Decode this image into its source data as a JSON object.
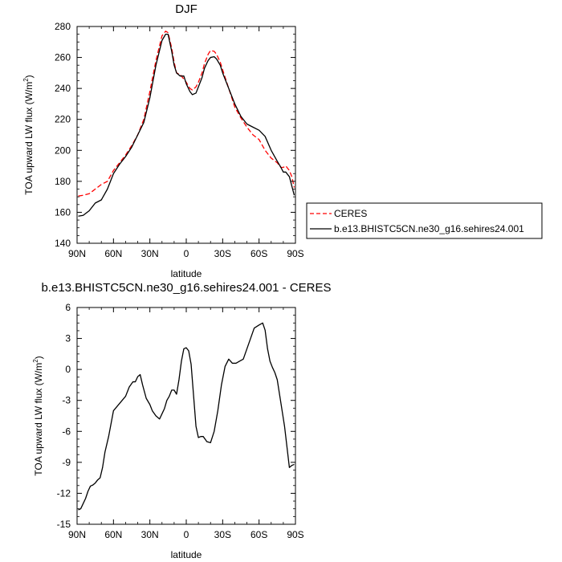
{
  "chart_data": [
    {
      "type": "line",
      "title": "DJF",
      "xlabel": "latitude",
      "ylabel": "TOA upward LW flux (W/m",
      "ylabel_sup": "2",
      "ylabel_tail": ")",
      "ylim": [
        140,
        280
      ],
      "xlim": [
        -90,
        90
      ],
      "y_ticks": [
        140,
        160,
        180,
        200,
        220,
        240,
        260,
        280
      ],
      "x_ticks": [
        -90,
        -60,
        -30,
        0,
        30,
        60,
        90
      ],
      "x_tick_labels": [
        "90N",
        "60N",
        "30N",
        "0",
        "30S",
        "60S",
        "90S"
      ],
      "legend": {
        "placement": "right",
        "entries": [
          "CERES",
          "b.e13.BHISTC5CN.ne30_g16.sehires24.001"
        ]
      },
      "series": [
        {
          "name": "CERES",
          "color": "#ff0000",
          "dashed": true,
          "x": [
            -89,
            -85,
            -80,
            -75,
            -70,
            -65,
            -60,
            -55,
            -50,
            -45,
            -40,
            -35,
            -30,
            -25,
            -20,
            -17,
            -15,
            -12,
            -10,
            -8,
            -5,
            -2,
            0,
            3,
            5,
            8,
            10,
            13,
            15,
            18,
            20,
            23,
            25,
            28,
            30,
            35,
            40,
            45,
            50,
            55,
            60,
            65,
            70,
            75,
            78,
            80,
            82,
            85,
            87,
            89
          ],
          "y": [
            170.5,
            171,
            172,
            175,
            178,
            180,
            187,
            192,
            197,
            203,
            210,
            220,
            238,
            258,
            274,
            277,
            276,
            266,
            257,
            250,
            249,
            246,
            244,
            240,
            239,
            241,
            244,
            250,
            256,
            262,
            264.5,
            264,
            262,
            257,
            252,
            240,
            228,
            221,
            215,
            210,
            207,
            200,
            195,
            192,
            189,
            189,
            190,
            187,
            183,
            176
          ]
        },
        {
          "name": "b.e13.BHISTC5CN.ne30_g16.sehires24.001",
          "color": "#000000",
          "dashed": false,
          "x": [
            -89,
            -85,
            -80,
            -75,
            -70,
            -65,
            -60,
            -55,
            -50,
            -45,
            -40,
            -35,
            -30,
            -25,
            -20,
            -17,
            -15,
            -12,
            -10,
            -8,
            -5,
            -2,
            0,
            3,
            5,
            8,
            10,
            13,
            15,
            18,
            20,
            23,
            25,
            28,
            30,
            35,
            40,
            45,
            50,
            55,
            60,
            65,
            70,
            75,
            78,
            80,
            82,
            85,
            87,
            89
          ],
          "y": [
            157.5,
            158,
            161,
            166,
            168,
            175,
            185,
            191,
            196,
            202,
            210,
            218,
            234,
            255,
            271,
            275,
            275,
            264,
            255,
            250,
            248,
            248,
            243,
            238,
            236,
            237,
            241,
            247,
            253,
            258,
            260,
            260.5,
            259,
            255,
            250,
            240,
            230,
            222,
            217,
            215,
            213,
            209,
            200,
            193,
            189,
            186,
            186,
            183,
            177,
            171
          ]
        }
      ]
    },
    {
      "type": "line",
      "title": "b.e13.BHISTC5CN.ne30_g16.sehires24.001 - CERES",
      "xlabel": "latitude",
      "ylabel": "TOA upward LW flux (W/m",
      "ylabel_sup": "2",
      "ylabel_tail": ")",
      "ylim": [
        -15,
        6
      ],
      "xlim": [
        -90,
        90
      ],
      "y_ticks": [
        -15,
        -12,
        -9,
        -6,
        -3,
        0,
        3,
        6
      ],
      "x_ticks": [
        -90,
        -60,
        -30,
        0,
        30,
        60,
        90
      ],
      "x_tick_labels": [
        "90N",
        "60N",
        "30N",
        "0",
        "30S",
        "60S",
        "90S"
      ],
      "series": [
        {
          "name": "b.e13.BHISTC5CN.ne30_g16.sehires24.001 - CERES",
          "color": "#000000",
          "dashed": false,
          "x": [
            -89,
            -87,
            -85,
            -83,
            -81,
            -79,
            -77,
            -75,
            -73,
            -71,
            -69,
            -67,
            -64,
            -60,
            -55,
            -50,
            -47,
            -44,
            -42,
            -40,
            -38,
            -36,
            -33,
            -30,
            -28,
            -25,
            -22,
            -20,
            -18,
            -16,
            -14,
            -12,
            -10,
            -8,
            -6,
            -4,
            -2,
            0,
            2,
            4,
            6,
            8,
            10,
            12,
            14,
            17,
            20,
            23,
            26,
            29,
            32,
            35,
            38,
            41,
            44,
            47,
            50,
            53,
            56,
            60,
            63,
            65,
            67,
            69,
            71,
            73,
            75,
            77,
            79,
            81,
            83,
            85,
            87,
            89
          ],
          "y": [
            -13.6,
            -13.5,
            -13,
            -12.5,
            -11.8,
            -11.3,
            -11.2,
            -11,
            -10.7,
            -10.5,
            -9.5,
            -8,
            -6.5,
            -4,
            -3.3,
            -2.6,
            -1.7,
            -1.2,
            -1.2,
            -0.7,
            -0.5,
            -1.5,
            -2.8,
            -3.4,
            -4.0,
            -4.5,
            -4.8,
            -4.3,
            -3.8,
            -3.0,
            -2.6,
            -2.0,
            -2.0,
            -2.4,
            -1.0,
            0.8,
            2.0,
            2.1,
            1.8,
            0.5,
            -2.5,
            -5.5,
            -6.6,
            -6.5,
            -6.5,
            -7.0,
            -7.1,
            -6.0,
            -4.0,
            -1.5,
            0.3,
            1.0,
            0.6,
            0.6,
            0.8,
            1.0,
            2.0,
            3.0,
            4.0,
            4.3,
            4.5,
            3.8,
            2.0,
            0.8,
            0.2,
            -0.3,
            -1.0,
            -2.5,
            -4.0,
            -5.5,
            -7.5,
            -9.5,
            -9.3,
            -9.2
          ]
        }
      ]
    }
  ]
}
